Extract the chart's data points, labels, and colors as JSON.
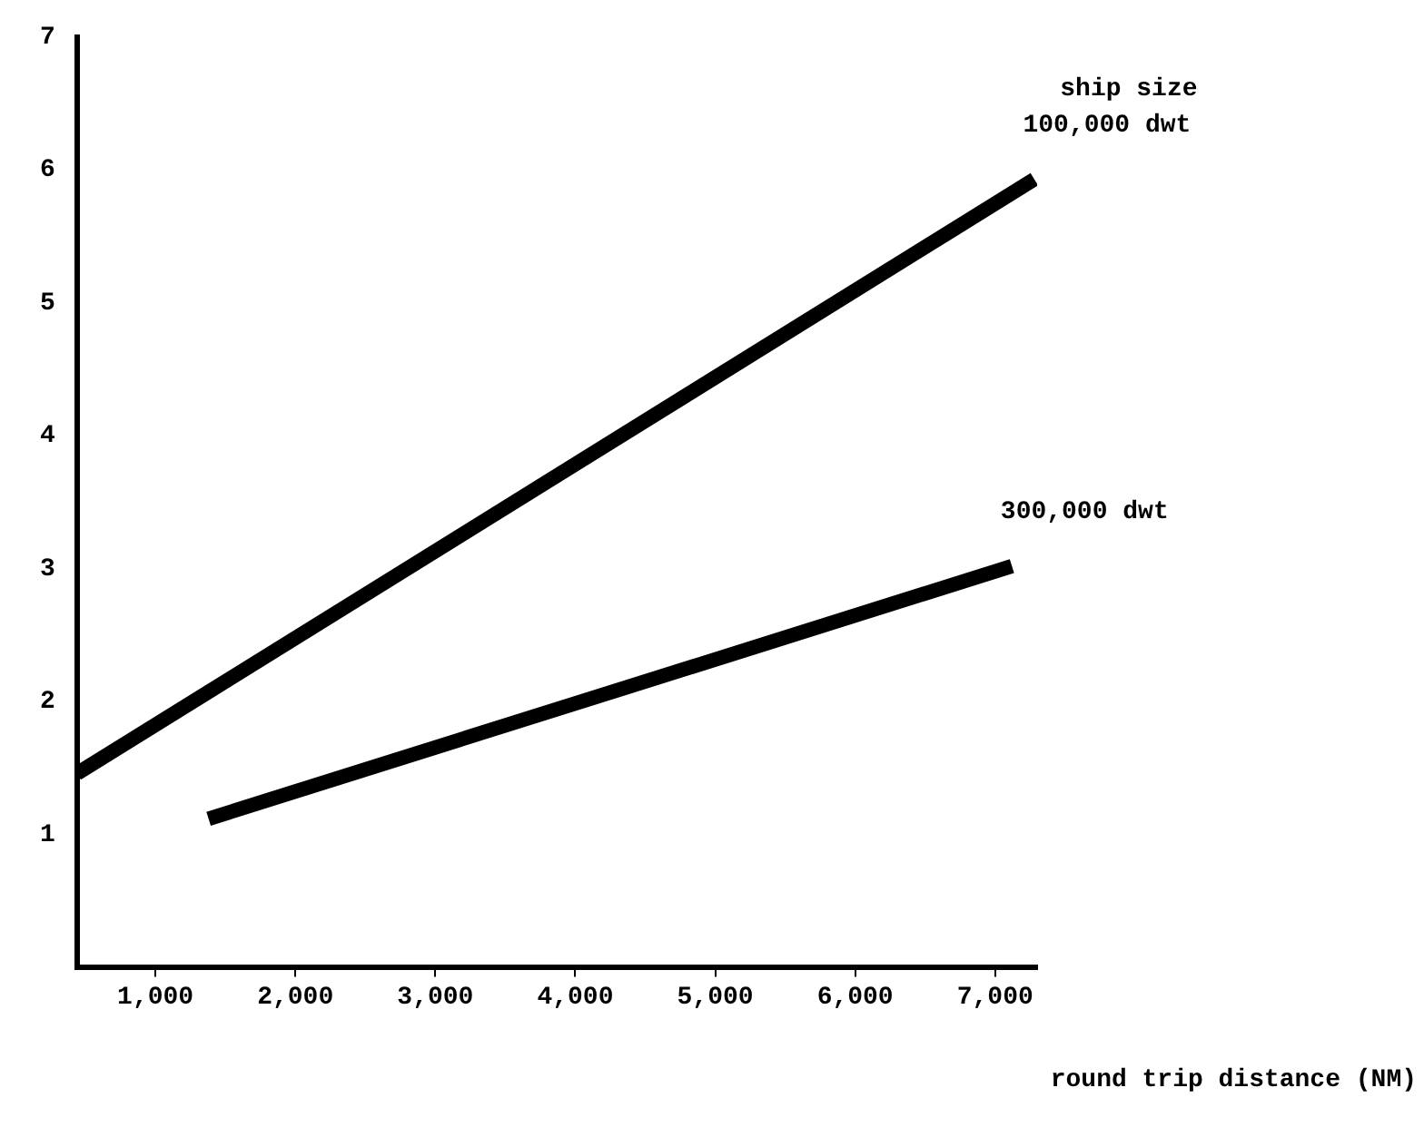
{
  "chart_data": {
    "type": "line",
    "xlabel": "round trip distance (NM)",
    "series": [
      {
        "name": "100,000 dwt",
        "color": "#000000",
        "x": [
          440,
          7280
        ],
        "values": [
          1.46,
          5.93
        ]
      },
      {
        "name": "300,000 dwt",
        "color": "#000000",
        "x": [
          1380,
          7120
        ],
        "values": [
          1.12,
          3.02
        ]
      }
    ],
    "annotations": [
      "ship size"
    ],
    "xlim": [
      440,
      7300
    ],
    "xticks": [
      {
        "value": 1000,
        "label": "1,000"
      },
      {
        "value": 2000,
        "label": "2,000"
      },
      {
        "value": 3000,
        "label": "3,000"
      },
      {
        "value": 4000,
        "label": "4,000"
      },
      {
        "value": 5000,
        "label": "5,000"
      },
      {
        "value": 6000,
        "label": "6,000"
      },
      {
        "value": 7000,
        "label": "7,000"
      }
    ],
    "ylim": [
      0,
      7
    ],
    "yticks": [
      1,
      2,
      3,
      4,
      5,
      6,
      7
    ],
    "grid": false,
    "legend": false,
    "marker": "none",
    "line_style": "solid"
  }
}
